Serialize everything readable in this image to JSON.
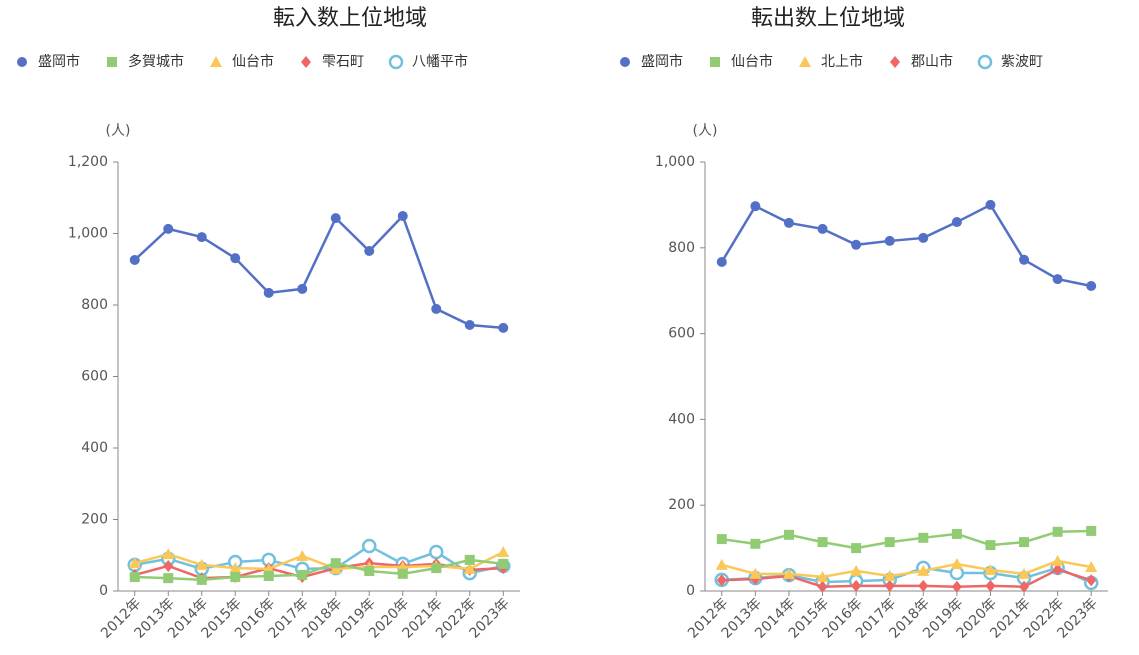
{
  "chart_data": [
    {
      "type": "line",
      "title": "転入数上位地域",
      "y_unit": "(人)",
      "categories": [
        "2012年",
        "2013年",
        "2014年",
        "2015年",
        "2016年",
        "2017年",
        "2018年",
        "2019年",
        "2020年",
        "2021年",
        "2022年",
        "2023年"
      ],
      "ylim": [
        0,
        1200
      ],
      "yticks": [
        0,
        200,
        400,
        600,
        800,
        {
          "value": 1000,
          "label": "1,000"
        },
        {
          "value": 1200,
          "label": "1,200"
        }
      ],
      "grid": false,
      "series": [
        {
          "name": "盛岡市",
          "color": "#5470c6",
          "marker": "circle",
          "values": [
            926,
            1013,
            990,
            931,
            834,
            845,
            1043,
            951,
            1049,
            789,
            744,
            736
          ]
        },
        {
          "name": "多賀城市",
          "color": "#91cc75",
          "marker": "square",
          "values": [
            39,
            36,
            31,
            39,
            42,
            45,
            78,
            56,
            48,
            64,
            87,
            76
          ]
        },
        {
          "name": "仙台市",
          "color": "#fac858",
          "marker": "triangle",
          "values": [
            78,
            103,
            73,
            64,
            62,
            98,
            62,
            67,
            67,
            70,
            62,
            109
          ]
        },
        {
          "name": "雫石町",
          "color": "#ee6666",
          "marker": "diamond",
          "values": [
            45,
            70,
            36,
            39,
            64,
            39,
            64,
            78,
            70,
            76,
            59,
            64
          ]
        },
        {
          "name": "八幡平市",
          "color": "#73c0de",
          "marker": "hollow-circle",
          "values": [
            73,
            90,
            62,
            81,
            87,
            62,
            64,
            126,
            76,
            109,
            50,
            70
          ]
        }
      ]
    },
    {
      "type": "line",
      "title": "転出数上位地域",
      "y_unit": "(人)",
      "categories": [
        "2012年",
        "2013年",
        "2014年",
        "2015年",
        "2016年",
        "2017年",
        "2018年",
        "2019年",
        "2020年",
        "2021年",
        "2022年",
        "2023年"
      ],
      "ylim": [
        0,
        1000
      ],
      "yticks": [
        0,
        200,
        400,
        600,
        800,
        {
          "value": 1000,
          "label": "1,000"
        }
      ],
      "grid": false,
      "series": [
        {
          "name": "盛岡市",
          "color": "#5470c6",
          "marker": "circle",
          "values": [
            767,
            897,
            858,
            844,
            807,
            816,
            823,
            860,
            900,
            772,
            727,
            711
          ]
        },
        {
          "name": "仙台市",
          "color": "#91cc75",
          "marker": "square",
          "values": [
            121,
            110,
            131,
            114,
            100,
            114,
            124,
            133,
            107,
            114,
            138,
            140
          ]
        },
        {
          "name": "北上市",
          "color": "#fac858",
          "marker": "triangle",
          "values": [
            61,
            40,
            40,
            33,
            47,
            35,
            47,
            63,
            49,
            40,
            70,
            56
          ]
        },
        {
          "name": "郡山市",
          "color": "#ee6666",
          "marker": "diamond",
          "values": [
            25,
            28,
            35,
            10,
            12,
            12,
            12,
            10,
            12,
            10,
            50,
            25
          ]
        },
        {
          "name": "紫波町",
          "color": "#73c0de",
          "marker": "hollow-circle",
          "values": [
            26,
            30,
            37,
            21,
            23,
            26,
            54,
            42,
            42,
            30,
            54,
            19
          ]
        }
      ]
    }
  ]
}
